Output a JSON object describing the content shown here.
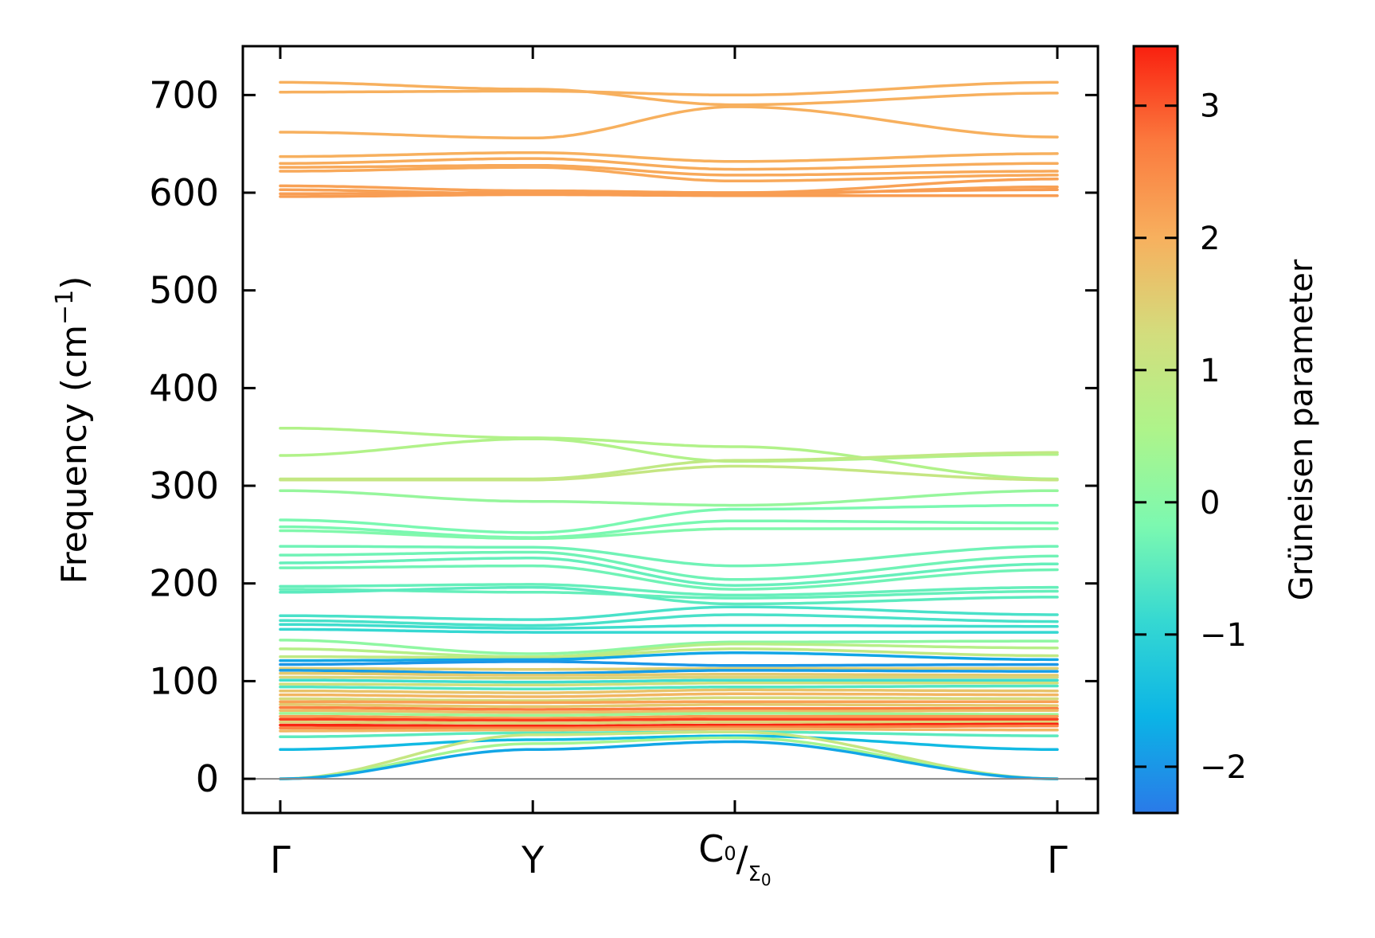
{
  "chart_data": {
    "type": "line",
    "ylabel": "Frequency (cm",
    "ylabel_sup": "−1",
    "ylabel_close": ")",
    "ylim": [
      -35,
      750
    ],
    "yticks": [
      0,
      100,
      200,
      300,
      400,
      500,
      600,
      700
    ],
    "kpoints": [
      {
        "label": "Γ",
        "pos": 0.0
      },
      {
        "label": "Y",
        "pos": 0.325
      },
      {
        "label": "C",
        "sub": "0",
        "label2": "Σ",
        "sub2": "0",
        "pos": 0.585
      },
      {
        "label": "Γ",
        "pos": 1.0
      }
    ],
    "colorbar": {
      "label": "Grüneisen parameter",
      "range": [
        -2.35,
        3.45
      ],
      "ticks": [
        -2,
        -1,
        0,
        1,
        2,
        3
      ],
      "tick_labels": [
        "−2",
        "−1",
        "0",
        "1",
        "2",
        "3"
      ],
      "colormap": [
        "#2a7ae8",
        "#0bb4e6",
        "#35d8d2",
        "#7cf9b0",
        "#aef48a",
        "#d3dd7d",
        "#f7b05e",
        "#fb7a3e",
        "#f9200f"
      ]
    },
    "zero_line": 0,
    "series": [
      {
        "values": [
          713,
          706,
          690,
          702
        ],
        "gruneisen": 2.0
      },
      {
        "values": [
          703,
          704,
          700,
          713
        ],
        "gruneisen": 2.0
      },
      {
        "values": [
          662,
          656,
          688,
          657
        ],
        "gruneisen": 2.0
      },
      {
        "values": [
          637,
          641,
          632,
          640
        ],
        "gruneisen": 2.0
      },
      {
        "values": [
          630,
          635,
          624,
          630
        ],
        "gruneisen": 2.05
      },
      {
        "values": [
          626,
          628,
          618,
          622
        ],
        "gruneisen": 2.1
      },
      {
        "values": [
          622,
          626,
          612,
          618
        ],
        "gruneisen": 2.1
      },
      {
        "values": [
          607,
          602,
          600,
          614
        ],
        "gruneisen": 2.2
      },
      {
        "values": [
          603,
          599,
          598,
          606
        ],
        "gruneisen": 2.2
      },
      {
        "values": [
          599,
          600,
          600,
          603
        ],
        "gruneisen": 2.25
      },
      {
        "values": [
          596,
          598,
          597,
          597
        ],
        "gruneisen": 2.25
      },
      {
        "values": [
          359,
          349,
          340,
          307
        ],
        "gruneisen": 0.6
      },
      {
        "values": [
          331,
          348,
          325,
          332
        ],
        "gruneisen": 0.6
      },
      {
        "values": [
          307,
          307,
          326,
          334
        ],
        "gruneisen": 0.9
      },
      {
        "values": [
          306,
          306,
          320,
          306
        ],
        "gruneisen": 1.0
      },
      {
        "values": [
          295,
          284,
          280,
          295
        ],
        "gruneisen": 0.2
      },
      {
        "values": [
          265,
          252,
          276,
          280
        ],
        "gruneisen": -0.2
      },
      {
        "values": [
          258,
          247,
          264,
          262
        ],
        "gruneisen": -0.2
      },
      {
        "values": [
          254,
          246,
          256,
          256
        ],
        "gruneisen": -0.1
      },
      {
        "values": [
          238,
          237,
          218,
          238
        ],
        "gruneisen": -0.3
      },
      {
        "values": [
          229,
          232,
          204,
          228
        ],
        "gruneisen": -0.3
      },
      {
        "values": [
          221,
          226,
          198,
          220
        ],
        "gruneisen": -0.4
      },
      {
        "values": [
          216,
          218,
          194,
          214
        ],
        "gruneisen": -0.3
      },
      {
        "values": [
          197,
          199,
          188,
          196
        ],
        "gruneisen": -0.4
      },
      {
        "values": [
          194,
          191,
          185,
          192
        ],
        "gruneisen": -0.4
      },
      {
        "values": [
          191,
          196,
          179,
          186
        ],
        "gruneisen": -0.5
      },
      {
        "values": [
          167,
          163,
          176,
          168
        ],
        "gruneisen": -0.7
      },
      {
        "values": [
          162,
          157,
          168,
          161
        ],
        "gruneisen": -0.7
      },
      {
        "values": [
          158,
          154,
          157,
          156
        ],
        "gruneisen": -0.8
      },
      {
        "values": [
          153,
          150,
          150,
          150
        ],
        "gruneisen": -0.9
      },
      {
        "values": [
          142,
          128,
          140,
          141
        ],
        "gruneisen": 0.1
      },
      {
        "values": [
          133,
          125,
          138,
          134
        ],
        "gruneisen": 0.7
      },
      {
        "values": [
          125,
          124,
          133,
          126
        ],
        "gruneisen": 0.9
      },
      {
        "values": [
          121,
          122,
          129,
          122
        ],
        "gruneisen": -1.8
      },
      {
        "values": [
          117,
          120,
          116,
          117
        ],
        "gruneisen": -2.0
      },
      {
        "values": [
          113,
          112,
          113,
          113
        ],
        "gruneisen": 1.5
      },
      {
        "values": [
          111,
          108,
          111,
          110
        ],
        "gruneisen": -1.9
      },
      {
        "values": [
          108,
          106,
          107,
          106
        ],
        "gruneisen": 1.6
      },
      {
        "values": [
          104,
          103,
          104,
          104
        ],
        "gruneisen": 1.4
      },
      {
        "values": [
          101,
          99,
          101,
          101
        ],
        "gruneisen": -0.8
      },
      {
        "values": [
          97,
          96,
          98,
          98
        ],
        "gruneisen": 1.2
      },
      {
        "values": [
          94,
          92,
          94,
          95
        ],
        "gruneisen": -0.6
      },
      {
        "values": [
          90,
          88,
          91,
          90
        ],
        "gruneisen": 1.7
      },
      {
        "values": [
          86,
          84,
          87,
          86
        ],
        "gruneisen": 1.9
      },
      {
        "values": [
          82,
          80,
          83,
          82
        ],
        "gruneisen": 1.3
      },
      {
        "values": [
          79,
          78,
          79,
          79
        ],
        "gruneisen": 2.2
      },
      {
        "values": [
          76,
          74,
          76,
          75
        ],
        "gruneisen": 1.6
      },
      {
        "values": [
          73,
          71,
          72,
          72
        ],
        "gruneisen": 2.7
      },
      {
        "values": [
          70,
          68,
          69,
          70
        ],
        "gruneisen": 1.8
      },
      {
        "values": [
          67,
          65,
          67,
          66
        ],
        "gruneisen": 0.3
      },
      {
        "values": [
          64,
          62,
          64,
          64
        ],
        "gruneisen": 2.3
      },
      {
        "values": [
          61,
          60,
          61,
          61
        ],
        "gruneisen": 3.2
      },
      {
        "values": [
          58,
          57,
          58,
          58
        ],
        "gruneisen": 1.5
      },
      {
        "values": [
          55,
          54,
          55,
          56
        ],
        "gruneisen": 3.4
      },
      {
        "values": [
          52,
          52,
          53,
          54
        ],
        "gruneisen": 2.6
      },
      {
        "values": [
          49,
          50,
          51,
          50
        ],
        "gruneisen": 1.9
      },
      {
        "values": [
          43,
          47,
          48,
          44
        ],
        "gruneisen": -0.5
      },
      {
        "values": [
          30,
          40,
          44,
          30
        ],
        "gruneisen": -1.5
      },
      {
        "values": [
          0,
          45,
          48,
          0
        ],
        "gruneisen": 1.0
      },
      {
        "values": [
          0,
          36,
          42,
          0
        ],
        "gruneisen": 0.4
      },
      {
        "values": [
          0,
          30,
          38,
          0
        ],
        "gruneisen": -1.8
      }
    ]
  }
}
